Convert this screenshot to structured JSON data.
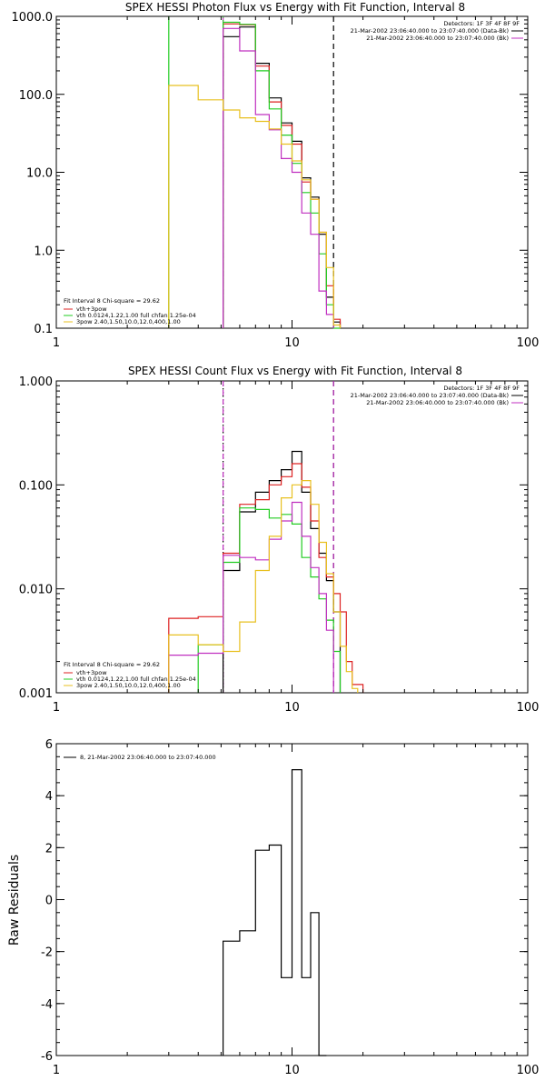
{
  "chart_data": [
    {
      "type": "line",
      "title": "SPEX HESSI Photon Flux vs Energy with Fit Function, Interval 8",
      "xscale": "log",
      "yscale": "log",
      "xlim": [
        1,
        100
      ],
      "ylim": [
        0.1,
        1000
      ],
      "x_ticks": [
        "1",
        "10",
        "100"
      ],
      "y_ticks": [
        "0.1",
        "1.0",
        "10.0",
        "100.0",
        "1000.0"
      ],
      "ylabel": "",
      "legend_topright": [
        "Detectors: 1F 3F 4F 8F 9F",
        "21-Mar-2002 23:06:40.000 to 23:07:40.000 (Data-Bk)",
        "21-Mar-2002 23:06:40.000 to 23:07:40.000 (Bk)"
      ],
      "legend_bottomleft": [
        "Fit Interval 8   Chi-square = 29.62",
        "vth+3pow",
        "vth 0.0124,1.22,1.00  full chfan 1.25e-04",
        "3pow 2.40,1.50,10.0,12.0,400,1.00"
      ],
      "vlines": [
        {
          "x": 3.0,
          "color": "#22cc22",
          "style": "solid"
        },
        {
          "x": 5.1,
          "color": "#c030c0",
          "style": "dashed"
        },
        {
          "x": 5.1,
          "color": "#22cc22",
          "style": "dotted"
        },
        {
          "x": 15.0,
          "color": "#000000",
          "style": "dashed"
        }
      ],
      "series": [
        {
          "color": "#000000",
          "edges": [
            5.1,
            6,
            7,
            8,
            9,
            10,
            11,
            12,
            13,
            14,
            15,
            16
          ],
          "values": [
            550,
            730,
            250,
            90,
            43,
            25,
            8.5,
            4.8,
            1.6,
            0.25,
            0.12
          ]
        },
        {
          "color": "#dd2222",
          "edges": [
            5.1,
            6,
            7,
            8,
            9,
            10,
            11,
            12,
            13,
            14,
            15,
            16
          ],
          "values": [
            800,
            780,
            230,
            80,
            40,
            23,
            7.5,
            4.5,
            1.7,
            0.35,
            0.13
          ]
        },
        {
          "color": "#22cc22",
          "edges": [
            5.1,
            6,
            7,
            8,
            9,
            10,
            11,
            12,
            13,
            14,
            15,
            16
          ],
          "values": [
            840,
            790,
            200,
            65,
            30,
            13,
            5.5,
            3.0,
            0.9,
            0.2,
            0.1
          ]
        },
        {
          "color": "#c030c0",
          "edges": [
            5.1,
            6,
            7,
            8,
            9,
            10,
            11,
            12,
            13,
            14,
            15
          ],
          "values": [
            700,
            360,
            55,
            35,
            15,
            10,
            3.0,
            1.6,
            0.3,
            0.15
          ]
        },
        {
          "color": "#e8c020",
          "edges": [
            3.0,
            4.0,
            5.1,
            6,
            7,
            8,
            9,
            10,
            11,
            12,
            13,
            14,
            15,
            16
          ],
          "values": [
            130,
            85,
            63,
            50,
            45,
            36,
            23,
            14,
            8,
            4.5,
            1.7,
            0.6,
            0.11
          ]
        }
      ]
    },
    {
      "type": "line",
      "title": "SPEX HESSI Count Flux vs Energy with Fit Function, Interval 8",
      "xscale": "log",
      "yscale": "log",
      "xlim": [
        1,
        100
      ],
      "ylim": [
        0.001,
        1
      ],
      "x_ticks": [
        "1",
        "10",
        "100"
      ],
      "y_ticks": [
        "0.001",
        "0.010",
        "0.100",
        "1.000"
      ],
      "ylabel": "",
      "legend_topright": [
        "Detectors: 1F 3F 4F 8F 9F",
        "21-Mar-2002 23:06:40.000 to 23:07:40.000 (Data-Bk)",
        "21-Mar-2002 23:06:40.000 to 23:07:40.000 (Bk)"
      ],
      "legend_bottomleft": [
        "Fit Interval 8   Chi-square = 29.62",
        "vth+3pow",
        "vth 0.0124,1.22,1.00  full chfan 1.25e-04",
        "3pow 2.40,1.50,10.0,12.0,400,1.00"
      ],
      "vlines": [
        {
          "x": 5.1,
          "color": "#000000",
          "style": "dotted"
        },
        {
          "x": 5.1,
          "color": "#c030c0",
          "style": "dashed"
        },
        {
          "x": 15.0,
          "color": "#000000",
          "style": "dashed"
        },
        {
          "x": 15.0,
          "color": "#c030c0",
          "style": "dashed"
        }
      ],
      "series": [
        {
          "color": "#000000",
          "edges": [
            5.1,
            6,
            7,
            8,
            9,
            10,
            11,
            12,
            13,
            14,
            15,
            16
          ],
          "values": [
            0.015,
            0.055,
            0.085,
            0.11,
            0.14,
            0.21,
            0.085,
            0.038,
            0.022,
            0.012,
            0.006
          ]
        },
        {
          "color": "#dd2222",
          "edges": [
            3.0,
            4.0,
            5.1,
            6,
            7,
            8,
            9,
            10,
            11,
            12,
            13,
            14,
            15,
            16,
            17,
            18,
            20
          ],
          "values": [
            0.0052,
            0.0054,
            0.022,
            0.065,
            0.072,
            0.1,
            0.12,
            0.16,
            0.095,
            0.045,
            0.02,
            0.013,
            0.009,
            0.006,
            0.002,
            0.0012
          ]
        },
        {
          "color": "#22cc22",
          "edges": [
            4.0,
            5.1,
            6,
            7,
            8,
            9,
            10,
            11,
            12,
            13,
            14,
            15,
            16
          ],
          "values": [
            0.0029,
            0.018,
            0.06,
            0.058,
            0.048,
            0.052,
            0.042,
            0.02,
            0.013,
            0.008,
            0.005,
            0.0025
          ]
        },
        {
          "color": "#c030c0",
          "edges": [
            3.0,
            4.0,
            5.1,
            6,
            7,
            8,
            9,
            10,
            11,
            12,
            13,
            14,
            15
          ],
          "values": [
            0.0023,
            0.0024,
            0.021,
            0.02,
            0.019,
            0.03,
            0.045,
            0.068,
            0.032,
            0.016,
            0.009,
            0.004
          ]
        },
        {
          "color": "#e8c020",
          "edges": [
            3.0,
            4.0,
            5.1,
            6,
            7,
            8,
            9,
            10,
            11,
            12,
            13,
            14,
            15,
            16,
            17,
            18,
            19
          ],
          "values": [
            0.0036,
            0.0029,
            0.0025,
            0.0048,
            0.015,
            0.032,
            0.075,
            0.1,
            0.11,
            0.065,
            0.028,
            0.014,
            0.006,
            0.0028,
            0.0016,
            0.0011
          ]
        }
      ]
    },
    {
      "type": "line",
      "title": "",
      "xscale": "log",
      "yscale": "linear",
      "xlim": [
        1,
        100
      ],
      "ylim": [
        -6,
        6
      ],
      "x_ticks": [
        "1",
        "10",
        "100"
      ],
      "y_ticks": [
        "-6",
        "-4",
        "-2",
        "0",
        "2",
        "4",
        "6"
      ],
      "ylabel": "Raw Residuals",
      "legend_topleft": [
        "8, 21-Mar-2002 23:06:40.000 to 23:07:40.000"
      ],
      "series": [
        {
          "color": "#000000",
          "edges": [
            5.1,
            6,
            7,
            8,
            9,
            10,
            11,
            12,
            13,
            14
          ],
          "values": [
            -1.6,
            -1.2,
            1.9,
            2.1,
            -3.0,
            5.0,
            -3.0,
            -0.5,
            -6.0
          ]
        }
      ]
    }
  ]
}
